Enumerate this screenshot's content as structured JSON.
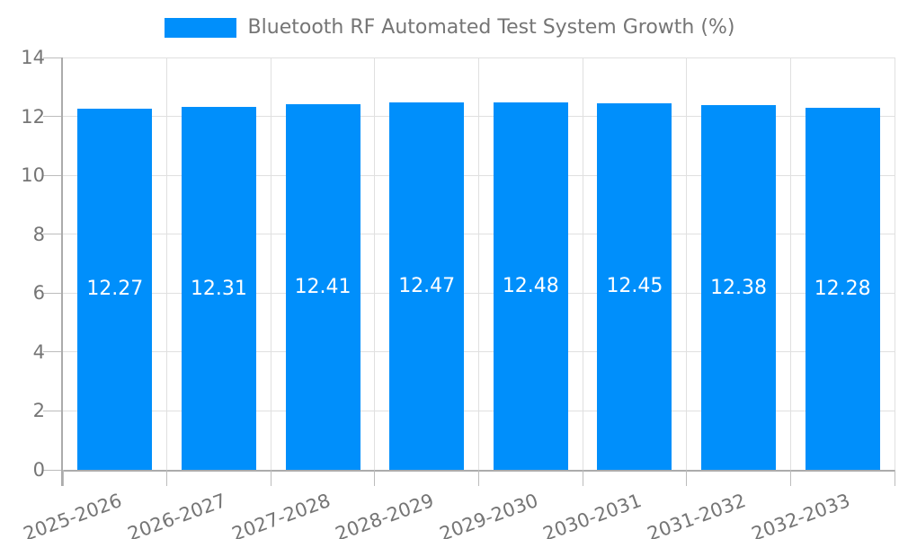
{
  "legend": {
    "label": "Bluetooth RF Automated Test System Growth (%)"
  },
  "chart_data": {
    "type": "bar",
    "title": "Bluetooth RF Automated Test System Growth (%)",
    "categories": [
      "2025-2026",
      "2026-2027",
      "2027-2028",
      "2028-2029",
      "2029-2030",
      "2030-2031",
      "2031-2032",
      "2032-2033"
    ],
    "series": [
      {
        "name": "Bluetooth RF Automated Test System Growth (%)",
        "values": [
          12.27,
          12.31,
          12.41,
          12.47,
          12.48,
          12.45,
          12.38,
          12.28
        ]
      }
    ],
    "value_labels": [
      "12.27",
      "12.31",
      "12.41",
      "12.47",
      "12.48",
      "12.45",
      "12.38",
      "12.28"
    ],
    "xlabel": "",
    "ylabel": "",
    "ylim": [
      0,
      14
    ],
    "yticks": [
      0,
      2,
      4,
      6,
      8,
      10,
      12,
      14
    ],
    "grid": true,
    "legend_position": "top",
    "x_label_rotation_deg": -20,
    "colors": {
      "bar": "#008FFB",
      "value_label": "#ffffff",
      "axis_text": "#757575",
      "legend_text": "#757575",
      "grid_line": "#e0e0e0",
      "axis_line": "#ababab",
      "tick": "#bcbcbc",
      "background": "#ffffff"
    }
  }
}
